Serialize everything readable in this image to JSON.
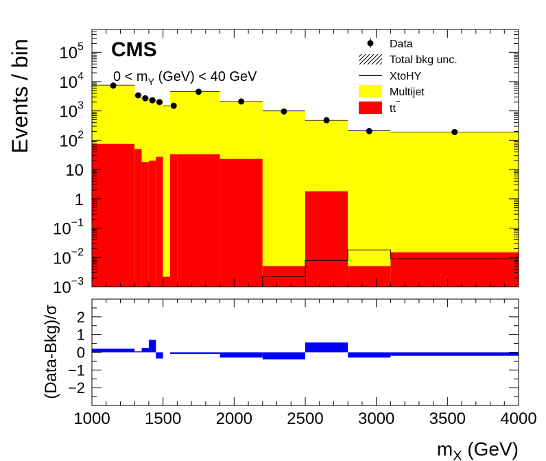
{
  "chart_data": {
    "type": "bar",
    "upper": {
      "ylabel": "Events / bin",
      "log_scale": true,
      "ylim": [
        0.001,
        600000
      ],
      "yticks": [
        {
          "value": 100000,
          "base": "10",
          "exp": "5"
        },
        {
          "value": 10000,
          "base": "10",
          "exp": "4"
        },
        {
          "value": 1000,
          "base": "10",
          "exp": "3"
        },
        {
          "value": 100,
          "base": "10",
          "exp": "2"
        },
        {
          "value": 10,
          "base": "10",
          "exp": ""
        },
        {
          "value": 1,
          "base": "1",
          "exp": ""
        },
        {
          "value": 0.1,
          "base": "10",
          "exp": "−1"
        },
        {
          "value": 0.01,
          "base": "10",
          "exp": "−2"
        },
        {
          "value": 0.001,
          "base": "10",
          "exp": "−3"
        }
      ],
      "bins": [
        1000,
        1300,
        1350,
        1400,
        1450,
        1500,
        1550,
        1600,
        1900,
        2200,
        2500,
        2800,
        3100,
        4000
      ],
      "multijet": [
        7500,
        3500,
        2700,
        2300,
        2000,
        1500,
        4500,
        4500,
        2100,
        1000,
        480,
        210,
        190
      ],
      "ttbar": [
        75,
        50,
        18,
        20,
        27,
        0.0022,
        33,
        33,
        23,
        0.005,
        1.8,
        0.005,
        0.015
      ],
      "signal": [
        0.0001,
        0.0001,
        0.0001,
        0.0001,
        0.0001,
        0.0001,
        0.0001,
        0.0001,
        0.0001,
        0.0022,
        0.008,
        0.018,
        0.009
      ],
      "data_x": [
        1150,
        1325,
        1375,
        1425,
        1475,
        1575,
        1750,
        2050,
        2350,
        2650,
        2950,
        3550
      ],
      "data_y": [
        7300,
        3400,
        2700,
        2300,
        2000,
        1500,
        4500,
        2100,
        960,
        480,
        205,
        190
      ]
    },
    "ratio": {
      "ylabel": "(Data-Bkg)/σ",
      "ylim": [
        -3,
        3
      ],
      "yticks": [
        -2,
        -1,
        0,
        1,
        2
      ],
      "pull": [
        0.2,
        0.05,
        0.25,
        0.7,
        -0.35,
        0.0,
        -0.1,
        -0.1,
        -0.3,
        -0.4,
        0.55,
        -0.3,
        -0.2
      ]
    },
    "xlabel_base": "m",
    "xlabel_sub": "X",
    "xlabel_unit": " (GeV)",
    "xlim": [
      1000,
      4000
    ],
    "xticks": [
      1000,
      1500,
      2000,
      2500,
      3000,
      3500,
      4000
    ],
    "legend_position": "top-right",
    "colors": {
      "multijet": "#ffff00",
      "ttbar": "#ff0000",
      "signal": "#000000",
      "data": "#000000",
      "pull": "#0000ff"
    }
  },
  "annotations": {
    "experiment": "CMS",
    "region_prefix": "0 < m",
    "region_sub": "Y",
    "region_suffix": " (GeV) < 40 GeV"
  },
  "legend": {
    "data": "Data",
    "bkg_unc": "Total bkg unc.",
    "signal": "XtoHY",
    "multijet": "Multijet",
    "ttbar": "tt",
    "ttbar_bar": "t"
  }
}
